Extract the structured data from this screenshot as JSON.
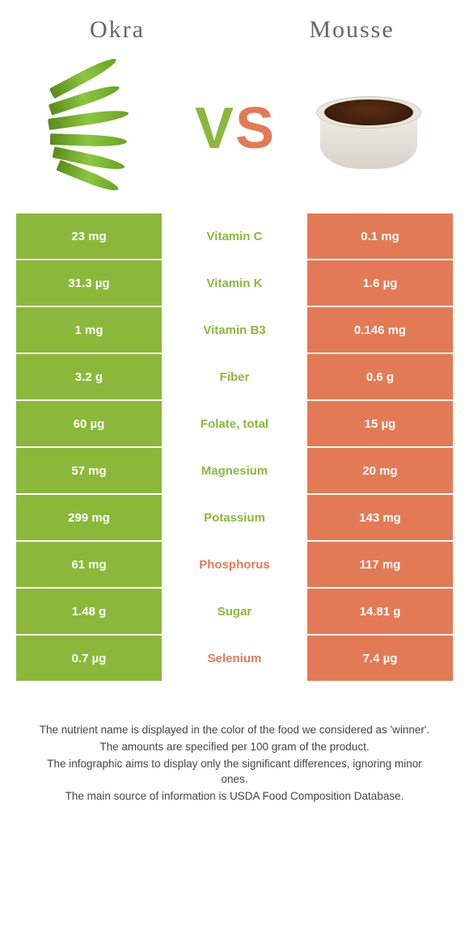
{
  "header": {
    "left": "Okra",
    "right": "Mousse"
  },
  "vs": {
    "v": "V",
    "s": "S"
  },
  "colors": {
    "green": "#8bb83b",
    "orange": "#e37a56"
  },
  "rows": [
    {
      "left": "23 mg",
      "label": "Vitamin C",
      "right": "0.1 mg",
      "winner": "green"
    },
    {
      "left": "31.3 µg",
      "label": "Vitamin K",
      "right": "1.6 µg",
      "winner": "green"
    },
    {
      "left": "1 mg",
      "label": "Vitamin B3",
      "right": "0.146 mg",
      "winner": "green"
    },
    {
      "left": "3.2 g",
      "label": "Fiber",
      "right": "0.6 g",
      "winner": "green"
    },
    {
      "left": "60 µg",
      "label": "Folate, total",
      "right": "15 µg",
      "winner": "green"
    },
    {
      "left": "57 mg",
      "label": "Magnesium",
      "right": "20 mg",
      "winner": "green"
    },
    {
      "left": "299 mg",
      "label": "Potassium",
      "right": "143 mg",
      "winner": "green"
    },
    {
      "left": "61 mg",
      "label": "Phosphorus",
      "right": "117 mg",
      "winner": "orange"
    },
    {
      "left": "1.48 g",
      "label": "Sugar",
      "right": "14.81 g",
      "winner": "green"
    },
    {
      "left": "0.7 µg",
      "label": "Selenium",
      "right": "7.4 µg",
      "winner": "orange"
    }
  ],
  "footer": {
    "l1": "The nutrient name is displayed in the color of the food we considered as 'winner'.",
    "l2": "The amounts are specified per 100 gram of the product.",
    "l3": "The infographic aims to display only the significant differences, ignoring minor ones.",
    "l4": "The main source of information is USDA Food Composition Database."
  }
}
